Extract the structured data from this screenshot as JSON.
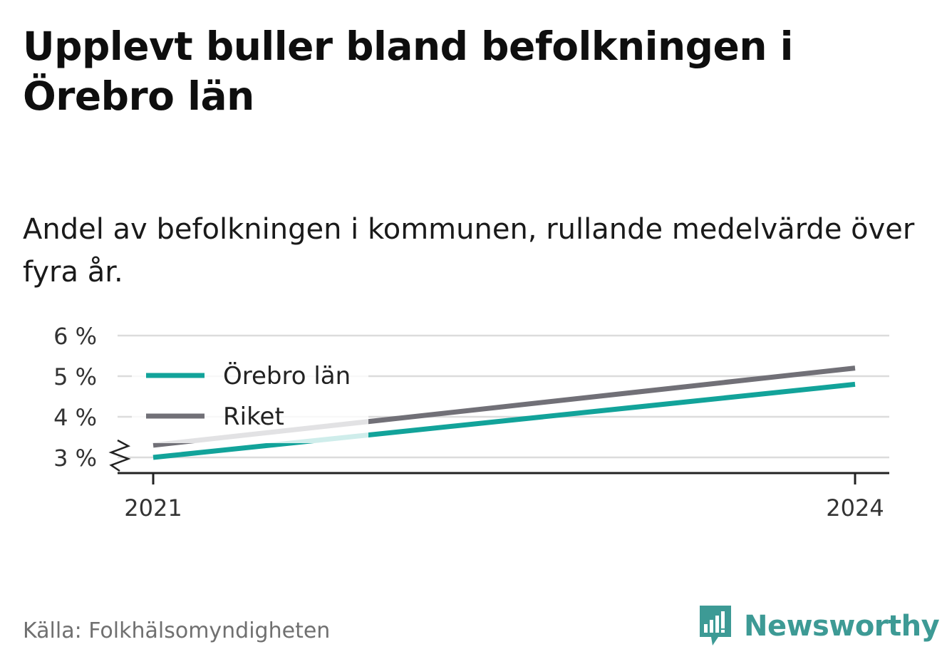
{
  "title": "Upplevt buller bland befolkningen i Örebro län",
  "subtitle": "Andel av befolkningen i kommunen, rullande medelvärde över fyra år.",
  "source": "Källa: Folkhälsomyndigheten",
  "brand": {
    "name": "Newsworthy",
    "icon": "newsworthy-logo-icon",
    "color": "#3d9a95"
  },
  "chart_data": {
    "type": "line",
    "x": [
      2021,
      2024
    ],
    "x_tick_labels": [
      "2021",
      "2024"
    ],
    "y_tick_labels": [
      "6 %",
      "5 %",
      "4 %",
      "3 %"
    ],
    "y_ticks": [
      6,
      5,
      4,
      3
    ],
    "ylim": [
      2.6,
      6.1
    ],
    "y_axis_break": true,
    "grid": true,
    "legend_position": "top-left",
    "series": [
      {
        "name": "Örebro län",
        "values": [
          3.0,
          4.8
        ],
        "color": "#12a39a"
      },
      {
        "name": "Riket",
        "values": [
          3.3,
          5.2
        ],
        "color": "#717077"
      }
    ]
  }
}
